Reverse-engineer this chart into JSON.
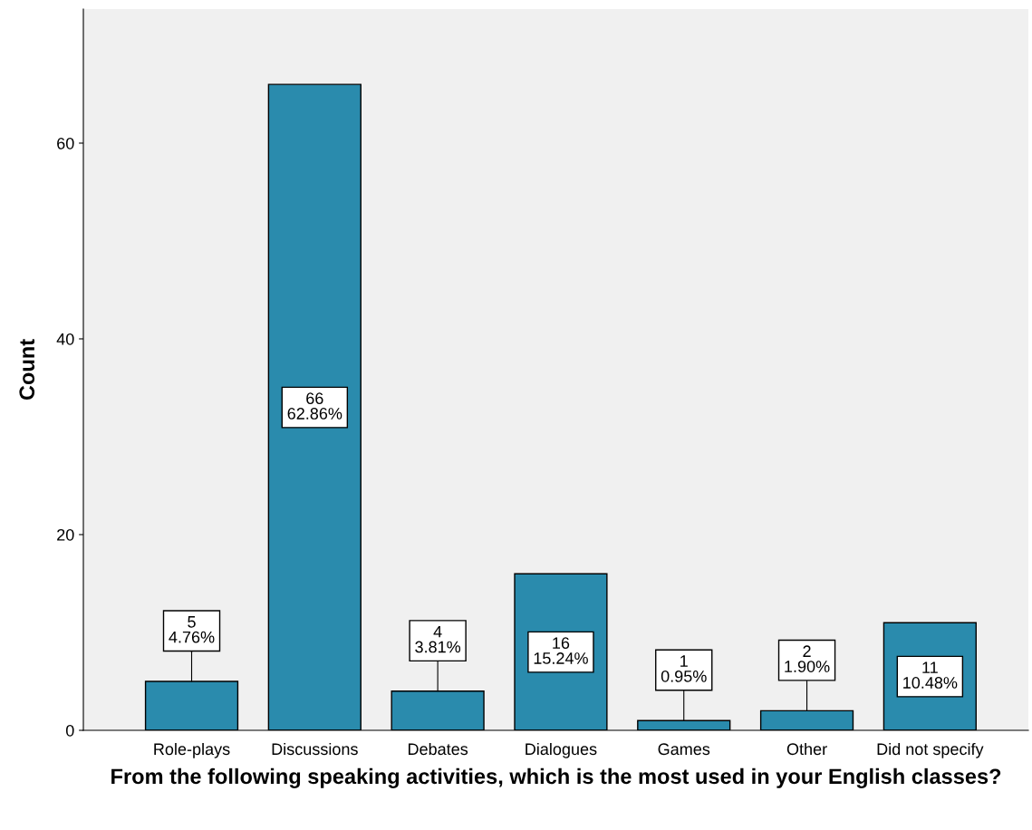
{
  "chart_data": {
    "type": "bar",
    "categories": [
      "Role-plays",
      "Discussions",
      "Debates",
      "Dialogues",
      "Games",
      "Other",
      "Did not specify"
    ],
    "values": [
      5,
      66,
      4,
      16,
      1,
      2,
      11
    ],
    "value_labels": [
      "5\n4.76%",
      "66\n62.86%",
      "4\n3.81%",
      "16\n15.24%",
      "1\n0.95%",
      "2\n1.90%",
      "11\n10.48%"
    ],
    "color": "#2a8bad",
    "xlabel": "From the following speaking activities, which is the most used in your English classes?",
    "ylabel": "Count",
    "ylim": [
      0,
      73.7
    ],
    "yticks": [
      0,
      20,
      40,
      60
    ],
    "grid": false,
    "legend": false
  }
}
